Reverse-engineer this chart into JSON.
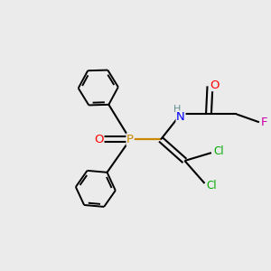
{
  "bg_color": "#ebebeb",
  "atom_colors": {
    "C": "#000000",
    "H": "#5f8f8f",
    "N": "#0000ff",
    "O": "#ff0000",
    "P": "#cc8800",
    "Cl": "#00aa00",
    "F": "#cc00aa"
  },
  "bond_color": "#000000",
  "figsize": [
    3.0,
    3.0
  ],
  "dpi": 100
}
